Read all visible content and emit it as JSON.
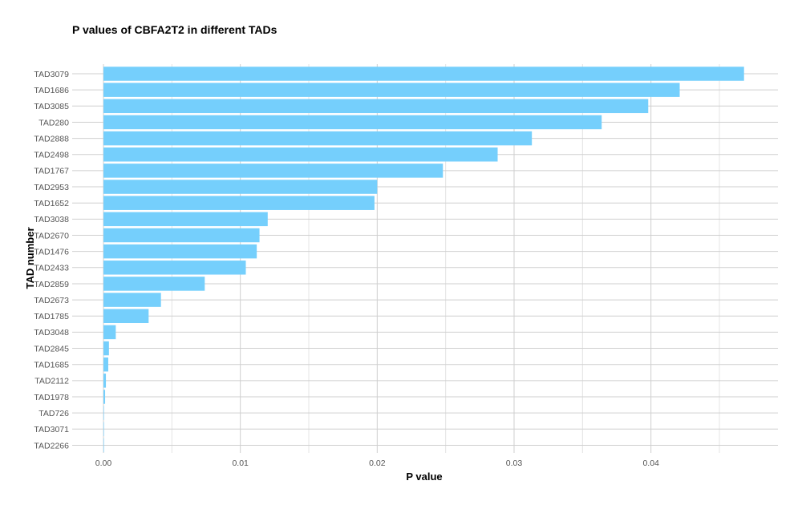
{
  "chart_data": {
    "type": "bar",
    "orientation": "horizontal",
    "title": "P values of CBFA2T2 in different TADs",
    "xlabel": "P value",
    "ylabel": "TAD number",
    "categories": [
      "TAD3079",
      "TAD1686",
      "TAD3085",
      "TAD280",
      "TAD2888",
      "TAD2498",
      "TAD1767",
      "TAD2953",
      "TAD1652",
      "TAD3038",
      "TAD2670",
      "TAD1476",
      "TAD2433",
      "TAD2859",
      "TAD2673",
      "TAD1785",
      "TAD3048",
      "TAD2845",
      "TAD1685",
      "TAD2112",
      "TAD1978",
      "TAD726",
      "TAD3071",
      "TAD2266"
    ],
    "values": [
      0.0468,
      0.0421,
      0.0398,
      0.0364,
      0.0313,
      0.0288,
      0.0248,
      0.02,
      0.0198,
      0.012,
      0.0114,
      0.0112,
      0.0104,
      0.0074,
      0.0042,
      0.0033,
      0.0009,
      0.0004,
      0.00035,
      0.00018,
      0.00012,
      3e-05,
      2e-05,
      1e-05
    ],
    "xlim": [
      0,
      0.049
    ],
    "xticks": [
      0.0,
      0.01,
      0.02,
      0.03,
      0.04
    ],
    "xtick_labels": [
      "0.00",
      "0.01",
      "0.02",
      "0.03",
      "0.04"
    ],
    "grid": true,
    "legend": false,
    "bar_color": "#75cffc"
  }
}
